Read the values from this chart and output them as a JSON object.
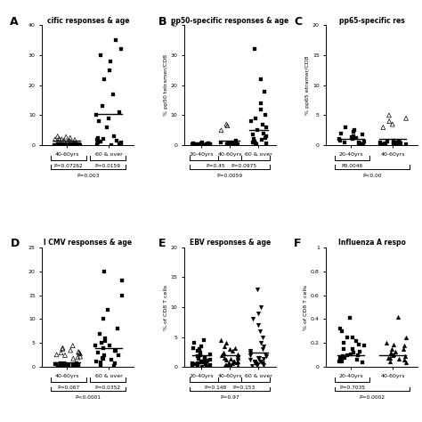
{
  "panels": [
    {
      "label": "A",
      "title": "cific responses & age",
      "ylabel": "",
      "ylabel_show": false,
      "groups": [
        "40-60yrs",
        "60 & over"
      ],
      "ylim": [
        0,
        40
      ],
      "yticks": [
        0,
        10,
        20,
        30,
        40
      ],
      "medians": [
        1.5,
        10.5
      ],
      "p_between": [
        "P=0.07262",
        "P=0.0159"
      ],
      "p_overall": "P=0.003",
      "solid_data": [
        [
          0.1,
          0.2,
          0.3,
          0.15,
          0.25,
          0.1,
          0.05,
          0.3,
          0.2,
          0.15,
          0.1,
          0.05,
          0.2,
          0.1,
          0.3,
          0.15,
          0.25,
          0.1,
          0.2,
          0.15
        ],
        [
          0.2,
          0.5,
          1.0,
          1.5,
          2.0,
          2.5,
          3.0,
          6.0,
          8.0,
          9.0,
          10.0,
          11.0,
          13.0,
          17.0,
          22.0,
          25.0,
          28.0,
          30.0,
          32.0,
          35.0,
          0.3,
          0.4,
          0.1,
          0.2,
          0.8,
          1.2,
          1.8
        ]
      ],
      "open_data": [
        [
          2.5,
          3.0,
          2.0,
          1.5,
          2.8,
          1.8,
          2.2,
          1.0,
          1.5,
          2.0,
          0.5,
          1.2
        ],
        []
      ],
      "solid_marker": [
        "s",
        "s"
      ],
      "open_marker": [
        "^",
        "^"
      ]
    },
    {
      "label": "B",
      "title": "pp50-specific responses & age",
      "ylabel": "% pp50 tetramer/CD8",
      "ylabel_show": true,
      "groups": [
        "20-40yrs",
        "40-60yrs",
        "60 & over"
      ],
      "ylim": [
        0,
        40
      ],
      "yticks": [
        0,
        10,
        20,
        30,
        40
      ],
      "medians": [
        0.5,
        1.5,
        5.0
      ],
      "p_between": [
        "P=0.45",
        "P=0.0975"
      ],
      "p_overall": "P=0.0059",
      "solid_data": [
        [
          0.1,
          0.2,
          0.5,
          0.3,
          0.8,
          0.4,
          0.6,
          0.2,
          0.1,
          0.3,
          0.5,
          0.2,
          0.4,
          0.1,
          0.3,
          0.6,
          0.2,
          0.4
        ],
        [
          0.2,
          0.3,
          0.5,
          0.8,
          1.0,
          1.5,
          0.4,
          0.6,
          0.3,
          0.2,
          0.4,
          0.1,
          0.7,
          0.5,
          0.3
        ],
        [
          0.5,
          1.0,
          2.0,
          3.0,
          4.0,
          5.0,
          6.0,
          7.0,
          8.0,
          9.0,
          10.0,
          12.0,
          14.0,
          18.0,
          22.0,
          32.0,
          0.3,
          0.5,
          0.8,
          1.2,
          1.8,
          2.5,
          3.5
        ]
      ],
      "open_data": [
        [],
        [
          5.0,
          6.5,
          7.0
        ],
        []
      ],
      "solid_marker": [
        "s",
        "s",
        "s"
      ],
      "open_marker": [
        "^",
        "^",
        "^"
      ]
    },
    {
      "label": "C",
      "title": "pp65-specific res",
      "ylabel": "% pp65 etramer/CD8",
      "ylabel_show": true,
      "groups": [
        "20-40yrs",
        "40-60yrs"
      ],
      "ylim": [
        0,
        20
      ],
      "yticks": [
        0,
        5,
        10,
        15,
        20
      ],
      "medians": [
        1.0,
        1.0
      ],
      "p_between": [
        "P0.0046"
      ],
      "p_overall": "P<0.00",
      "solid_data": [
        [
          0.5,
          1.0,
          1.5,
          2.0,
          2.5,
          3.0,
          0.3,
          0.8,
          1.2,
          1.8,
          0.2,
          0.4,
          0.6,
          1.0,
          1.4,
          0.1,
          0.3,
          2.2
        ],
        [
          0.1,
          0.2,
          0.5,
          0.3,
          0.8,
          0.4,
          0.6,
          0.2,
          0.1,
          0.3,
          0.5,
          0.2,
          0.4,
          0.1,
          0.3,
          0.6,
          0.2,
          0.4,
          0.1,
          0.3
        ]
      ],
      "open_data": [
        [],
        [
          3.5,
          4.5,
          5.0,
          4.0,
          3.0
        ]
      ],
      "solid_marker": [
        "s",
        "s"
      ],
      "open_marker": [
        "^",
        "^"
      ]
    },
    {
      "label": "D",
      "title": "l CMV responses & age",
      "ylabel": "",
      "ylabel_show": false,
      "groups": [
        "40-60yrs",
        "60 & over"
      ],
      "ylim": [
        0,
        25
      ],
      "yticks": [
        0,
        5,
        10,
        15,
        20,
        25
      ],
      "medians": [
        1.0,
        4.0
      ],
      "p_between": [
        "P=0.067",
        "P=0.0352"
      ],
      "p_overall": "P<0.0001",
      "solid_data": [
        [
          0.1,
          0.2,
          0.3,
          0.5,
          0.8,
          0.6,
          0.4,
          0.2,
          0.7,
          0.5,
          0.9,
          0.3,
          0.6,
          0.4,
          0.8,
          0.5,
          0.3,
          0.6,
          0.2,
          0.4
        ],
        [
          0.5,
          1.0,
          1.5,
          2.0,
          2.5,
          3.0,
          3.5,
          4.0,
          4.5,
          5.0,
          5.5,
          6.0,
          7.0,
          8.0,
          10.0,
          12.0,
          15.0,
          18.0,
          20.0,
          0.3,
          0.8,
          1.2,
          1.8,
          2.5,
          3.5,
          4.5
        ]
      ],
      "open_data": [
        [
          3.0,
          3.5,
          2.5,
          2.0,
          3.8,
          2.8,
          4.5,
          3.2,
          2.2,
          1.8,
          4.0,
          3.0,
          2.6
        ],
        []
      ],
      "solid_marker": [
        "s",
        "s"
      ],
      "open_marker": [
        "^",
        "^"
      ]
    },
    {
      "label": "E",
      "title": "EBV responses & age",
      "ylabel": "% of CD8 T cells",
      "ylabel_show": true,
      "groups": [
        "20-40yrs",
        "40-60yrs",
        "60 & over"
      ],
      "ylim": [
        0,
        20
      ],
      "yticks": [
        0,
        5,
        10,
        15,
        20
      ],
      "medians": [
        2.0,
        2.0,
        2.5
      ],
      "p_between": [
        "P=0.148",
        "P=0.153"
      ],
      "p_overall": "P=0.97",
      "solid_data": [
        [
          0.5,
          1.0,
          1.5,
          2.0,
          2.5,
          3.0,
          3.5,
          4.0,
          0.3,
          0.8,
          1.2,
          1.8,
          0.2,
          0.4,
          0.6,
          1.0,
          1.4,
          2.2,
          0.7,
          0.9,
          1.6,
          2.8,
          3.2,
          4.5,
          0.1,
          0.3,
          0.5,
          0.8,
          1.1
        ],
        [
          0.5,
          1.0,
          1.5,
          2.0,
          2.5,
          3.0,
          3.5,
          4.0,
          4.5,
          0.3,
          0.8,
          1.2,
          1.8,
          0.2,
          0.4,
          0.6,
          1.0,
          1.4,
          2.2,
          0.7,
          0.9,
          1.6,
          2.8,
          3.2,
          0.1,
          0.3,
          0.5
        ],
        [
          0.5,
          1.0,
          1.5,
          2.0,
          2.5,
          3.0,
          3.5,
          4.0,
          5.0,
          6.0,
          7.0,
          8.0,
          9.0,
          10.0,
          13.0,
          0.3,
          0.8,
          1.2,
          1.8,
          0.2,
          0.4,
          0.6,
          1.0,
          1.4,
          2.2,
          0.7,
          0.9,
          1.6,
          2.8
        ]
      ],
      "open_data": [
        [],
        [],
        []
      ],
      "solid_marker": [
        "s",
        "^",
        "v"
      ]
    },
    {
      "label": "F",
      "title": "Influenza A respo",
      "ylabel": "% of CD8 T cells",
      "ylabel_show": true,
      "groups": [
        "20-40yrs",
        "40-60yrs"
      ],
      "ylim": [
        0,
        1.0
      ],
      "yticks": [
        0.0,
        0.2,
        0.4,
        0.6,
        0.8,
        1.0
      ],
      "medians": [
        0.1,
        0.1
      ],
      "p_between": [
        "P=0.7035"
      ],
      "p_overall": "P=0.0002",
      "solid_data": [
        [
          0.05,
          0.1,
          0.15,
          0.2,
          0.25,
          0.3,
          0.1,
          0.05,
          0.08,
          0.12,
          0.18,
          0.22,
          0.06,
          0.09,
          0.11,
          0.15,
          0.19,
          0.13,
          0.07,
          0.04,
          0.08,
          0.25,
          0.32,
          0.41
        ],
        [
          0.05,
          0.1,
          0.15,
          0.2,
          0.25,
          0.08,
          0.12,
          0.18,
          0.06,
          0.09,
          0.11,
          0.15,
          0.19,
          0.13,
          0.07,
          0.04,
          0.08,
          0.42
        ]
      ],
      "open_data": [
        [],
        []
      ],
      "solid_marker": [
        "s",
        "^"
      ]
    }
  ],
  "bg_color": "#ffffff",
  "text_color": "#000000",
  "marker_size": 3.5,
  "line_color": "#000000"
}
